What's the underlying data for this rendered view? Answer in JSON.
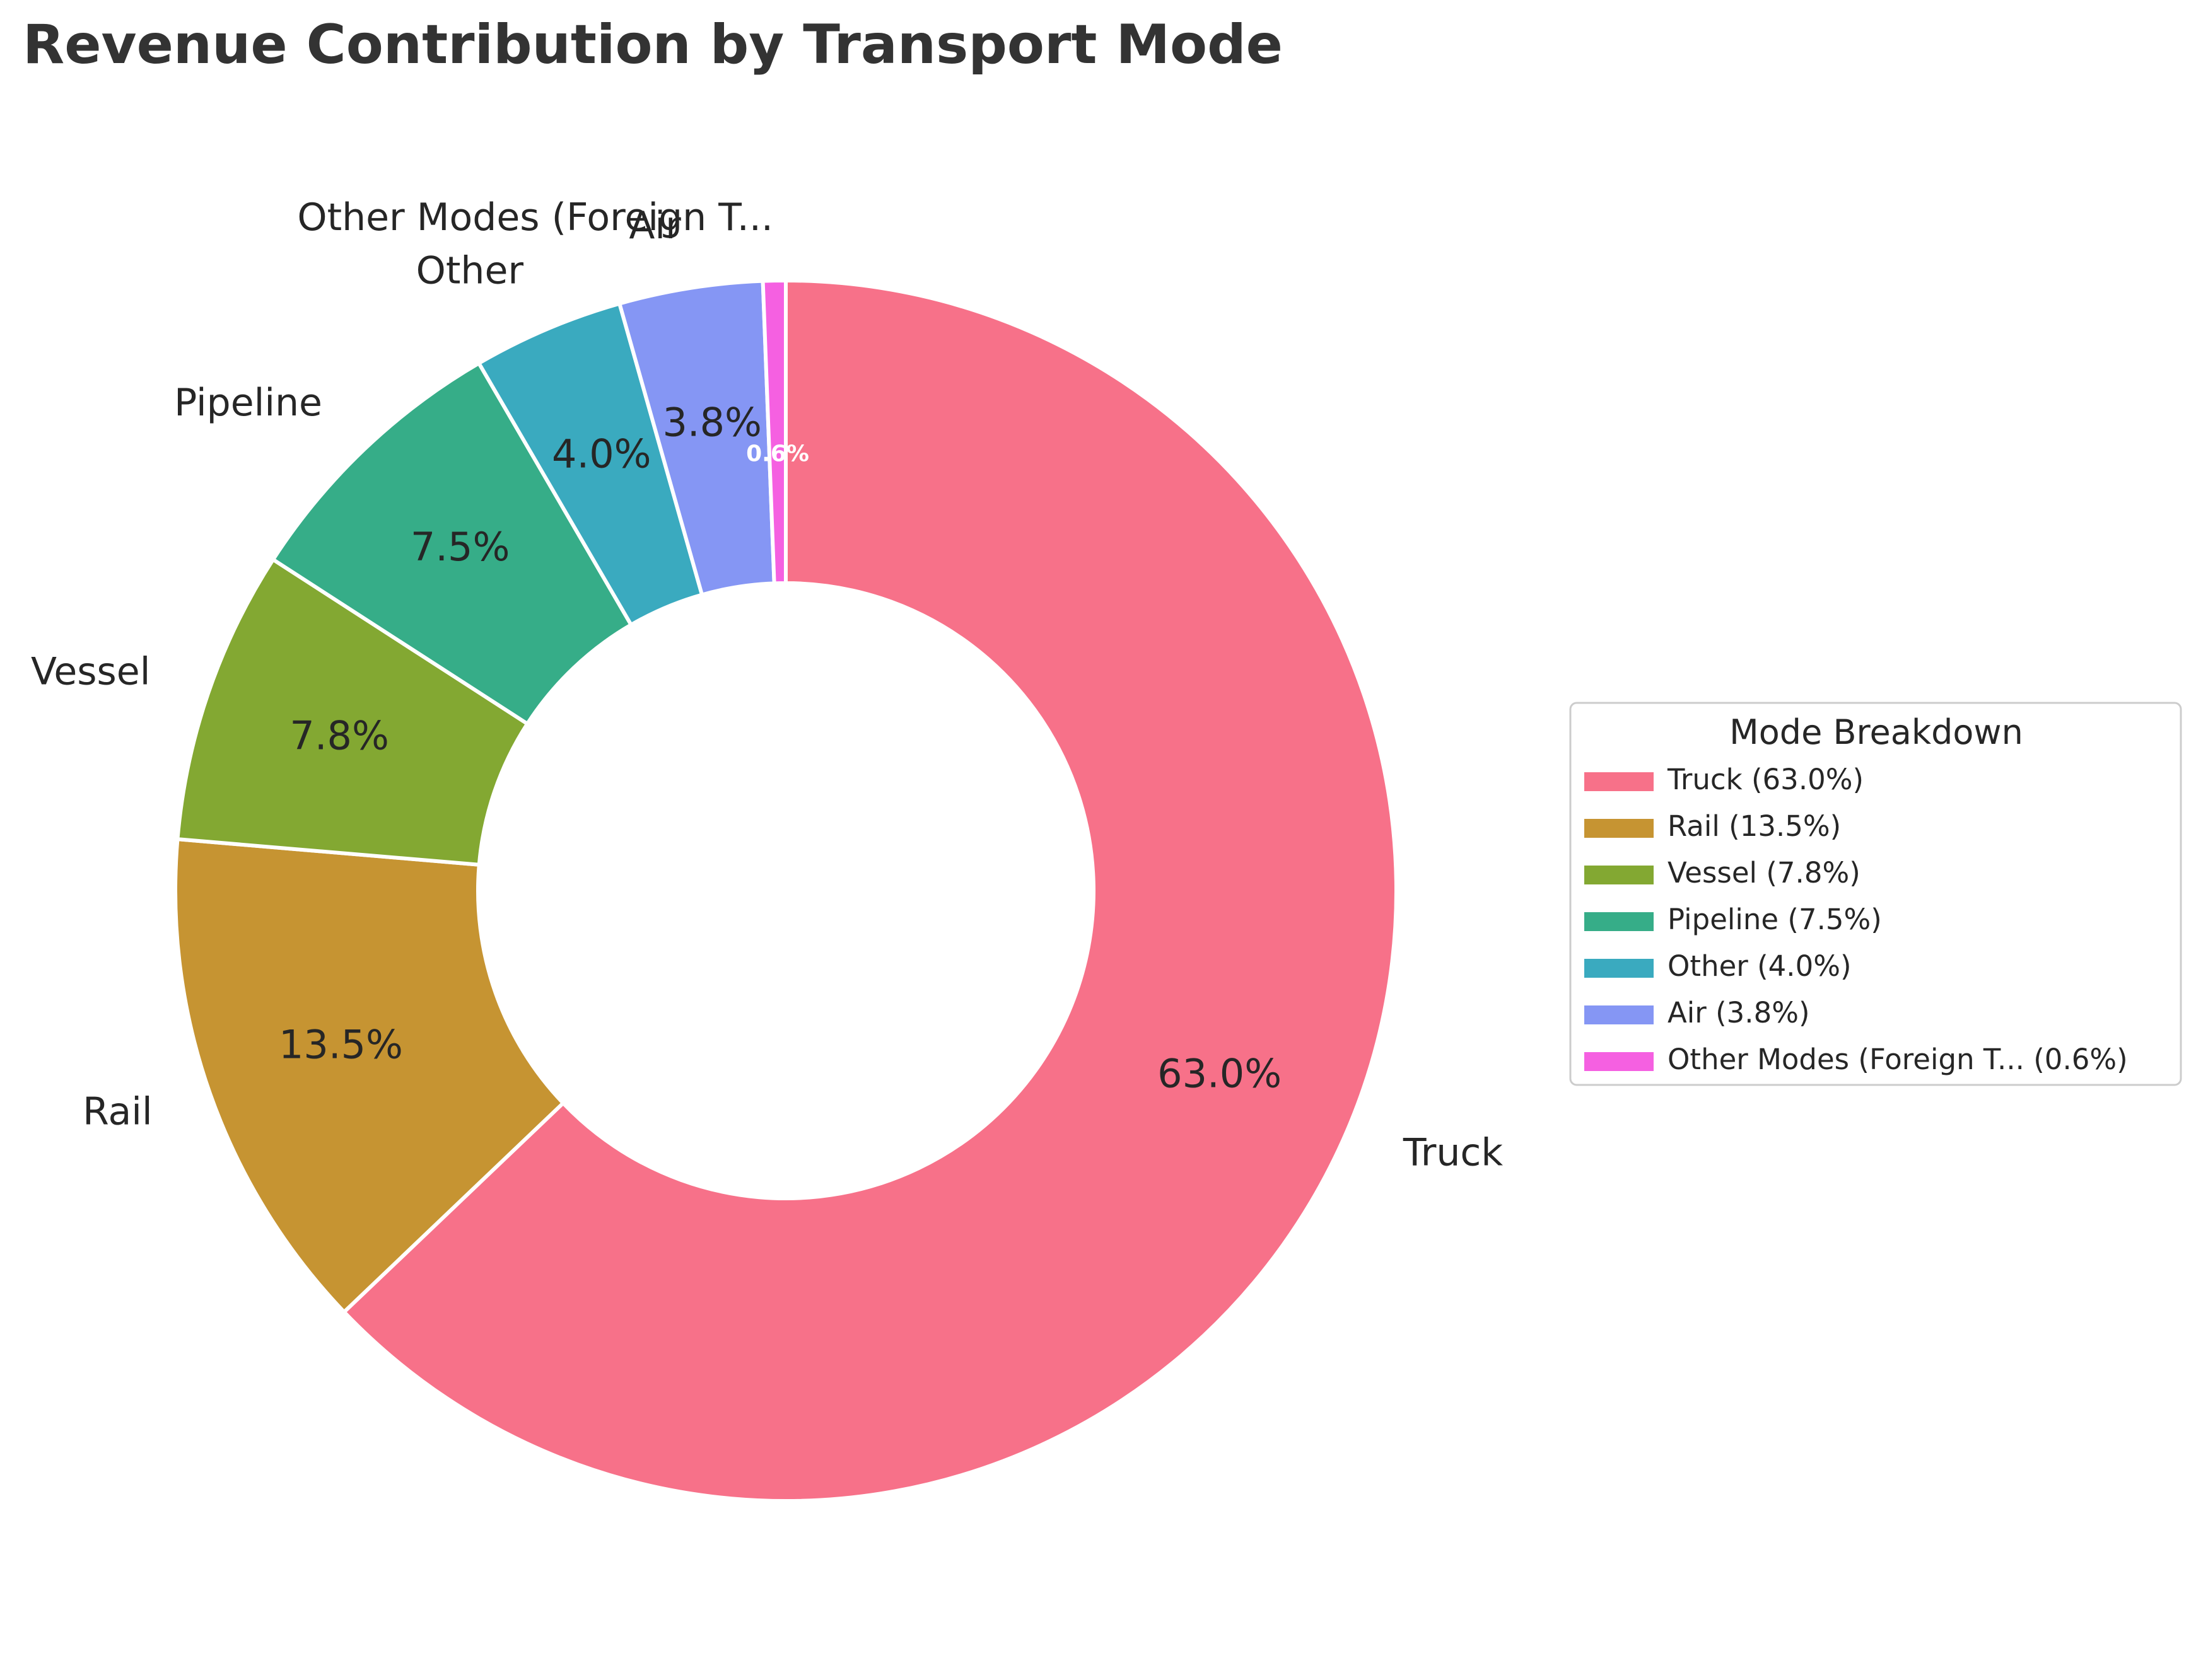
{
  "chart_data": {
    "type": "pie",
    "style": "donut",
    "title": "Revenue Contribution by Transport Mode",
    "start_angle": "top, clockwise",
    "slices": [
      {
        "label": "Truck",
        "value": 63.0,
        "pct_label": "63.0%",
        "legend": "Truck (63.0%)",
        "color": "#f77189"
      },
      {
        "label": "Rail",
        "value": 13.5,
        "pct_label": "13.5%",
        "legend": "Rail (13.5%)",
        "color": "#c69432"
      },
      {
        "label": "Vessel",
        "value": 7.8,
        "pct_label": "7.8%",
        "legend": "Vessel (7.8%)",
        "color": "#83a832"
      },
      {
        "label": "Pipeline",
        "value": 7.5,
        "pct_label": "7.5%",
        "legend": "Pipeline (7.5%)",
        "color": "#36ad88"
      },
      {
        "label": "Other",
        "value": 4.0,
        "pct_label": "4.0%",
        "legend": "Other (4.0%)",
        "color": "#3aaabf"
      },
      {
        "label": "Air",
        "value": 3.8,
        "pct_label": "3.8%",
        "legend": "Air (3.8%)",
        "color": "#8596f4"
      },
      {
        "label": "Other Modes (Foreign T...",
        "value": 0.6,
        "pct_label": "0.6%",
        "legend": "Other Modes (Foreign T... (0.6%)",
        "color": "#f560e1"
      }
    ],
    "legend": {
      "title": "Mode Breakdown",
      "placement": "right"
    }
  }
}
